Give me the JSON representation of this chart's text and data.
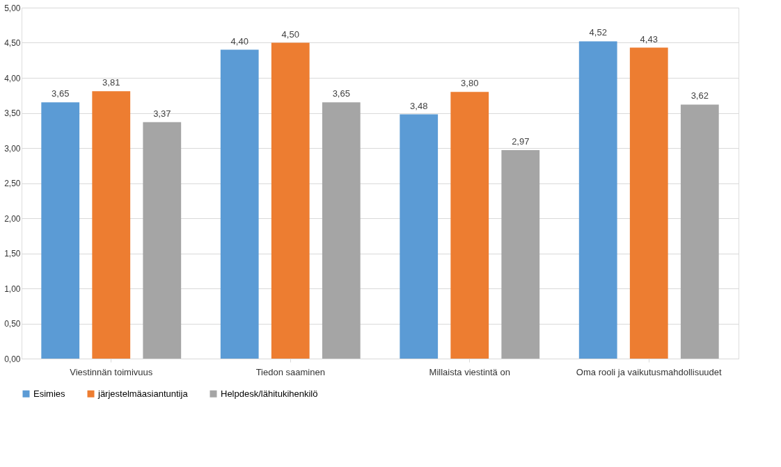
{
  "chart_data": {
    "type": "bar",
    "categories": [
      "Viestinnän toimivuus",
      "Tiedon saaminen",
      "Millaista viestintä on",
      "Oma rooli ja vaikutusmahdollisuudet"
    ],
    "series": [
      {
        "name": "Esimies",
        "color": "#5b9bd5",
        "values": [
          3.65,
          4.4,
          3.48,
          4.52
        ],
        "value_labels": [
          "3,65",
          "4,40",
          "3,48",
          "4,52"
        ]
      },
      {
        "name": "järjestelmäasiantuntija",
        "color": "#ed7d31",
        "values": [
          3.81,
          4.5,
          3.8,
          4.43
        ],
        "value_labels": [
          "3,81",
          "4,50",
          "3,80",
          "4,43"
        ]
      },
      {
        "name": "Helpdesk/lähitukihenkilö",
        "color": "#a5a5a5",
        "values": [
          3.37,
          3.65,
          2.97,
          3.62
        ],
        "value_labels": [
          "3,37",
          "3,65",
          "2,97",
          "3,62"
        ]
      }
    ],
    "ylim": [
      0,
      5
    ],
    "yticks": [
      {
        "value": 0,
        "label": "0,00"
      },
      {
        "value": 0.5,
        "label": "0,50"
      },
      {
        "value": 1,
        "label": "1,00"
      },
      {
        "value": 1.5,
        "label": "1,50"
      },
      {
        "value": 2,
        "label": "2,00"
      },
      {
        "value": 2.5,
        "label": "2,50"
      },
      {
        "value": 3,
        "label": "3,00"
      },
      {
        "value": 3.5,
        "label": "3,50"
      },
      {
        "value": 4,
        "label": "4,00"
      },
      {
        "value": 4.5,
        "label": "4,50"
      },
      {
        "value": 5,
        "label": "5,00"
      }
    ],
    "grid": "y",
    "legend": "bottom"
  }
}
